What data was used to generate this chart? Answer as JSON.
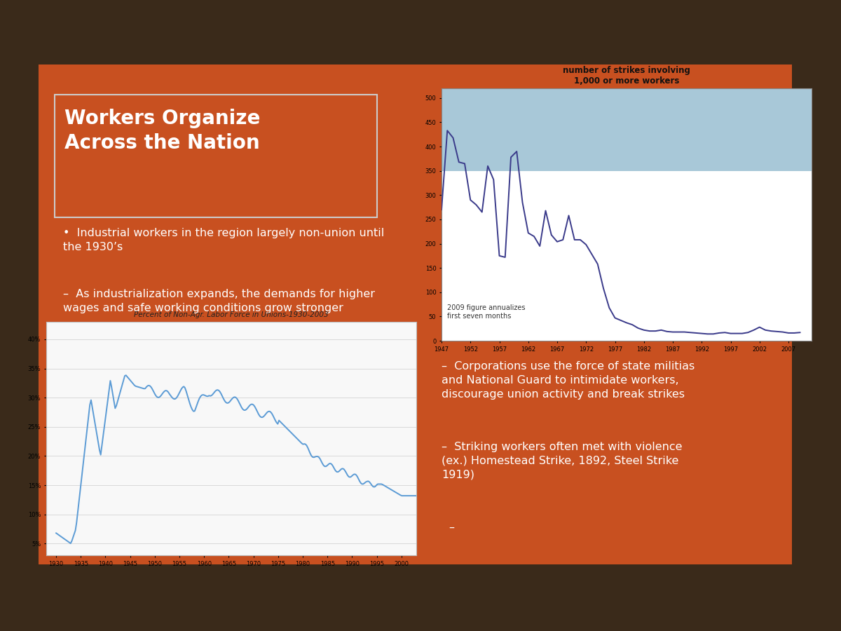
{
  "slide_bg": "#C85020",
  "slide_title_line1": "Workers Organize",
  "slide_title_line2": "Across the Nation",
  "slide_title_color": "#FFFFFF",
  "slide_title_fontsize": 20,
  "bullet1": "Industrial workers in the region largely non-union until\nthe 1930’s",
  "bullet2": "As industrialization expands, the demands for higher\nwages and safe working conditions grow stronger",
  "bullet3": "Corporations use the force of state militias\nand National Guard to intimidate workers,\ndiscourage union activity and break strikes",
  "bullet4": "Striking workers often met with violence\n(ex.) Homestead Strike, 1892, Steel Strike\n1919)",
  "bullet_color": "#FFFFFF",
  "bullet_fontsize": 11.5,
  "chart1_title": "Percent of Non-Agr. Labor Force in Unions-1930-2003",
  "chart1_bg": "#F8F8F8",
  "chart1_line_color": "#5B9BD5",
  "chart2_title": "number of strikes involving\n1,000 or more workers",
  "chart2_bg_top": "#A8C8D8",
  "chart2_bg_bottom": "#FFFFFF",
  "chart2_line_color": "#3A3A8A",
  "chart2_annotation": "2009 figure annualizes\nfirst seven months",
  "outer_bg": "#3A2A1A",
  "title_box_border": "#CCCCCC"
}
